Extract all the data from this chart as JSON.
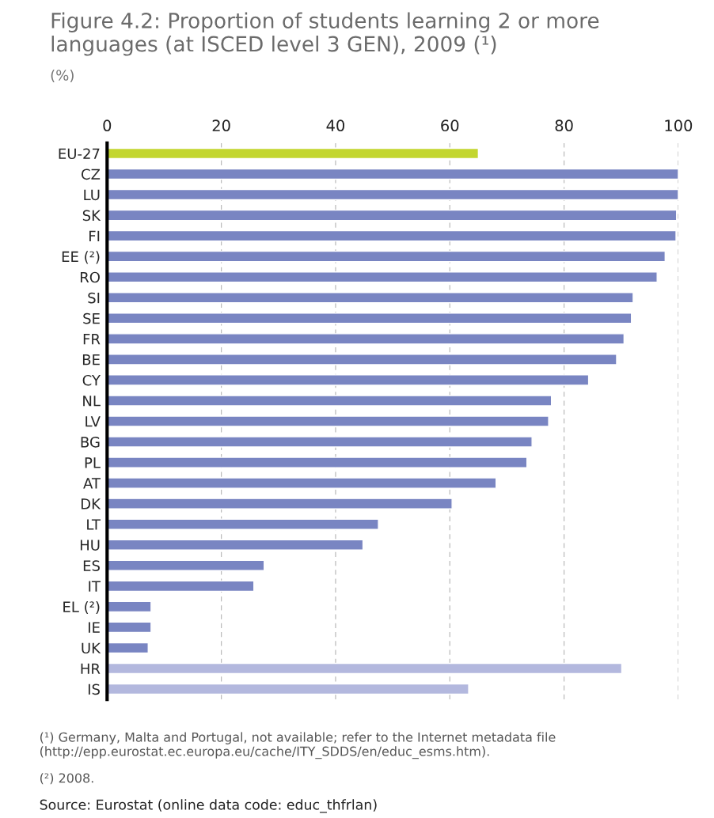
{
  "chart_data": {
    "type": "bar",
    "orientation": "horizontal",
    "title": "Figure 4.2: Proportion of students learning 2 or more languages (at ISCED level 3 GEN), 2009 (¹)",
    "subtitle": "(%)",
    "categories": [
      "EU-27",
      "CZ",
      "LU",
      "SK",
      "FI",
      "EE (²)",
      "RO",
      "SI",
      "SE",
      "FR",
      "BE",
      "CY",
      "NL",
      "LV",
      "BG",
      "PL",
      "AT",
      "DK",
      "LT",
      "HU",
      "ES",
      "IT",
      "EL (²)",
      "IE",
      "UK",
      "HR",
      "IS"
    ],
    "values": [
      65,
      100,
      100,
      99.7,
      99.6,
      97.7,
      96.3,
      92.1,
      91.8,
      90.5,
      89.2,
      84.3,
      77.8,
      77.3,
      74.4,
      73.5,
      68.1,
      60.4,
      47.5,
      44.8,
      27.5,
      25.7,
      7.7,
      7.7,
      7.2,
      90.1,
      63.3
    ],
    "colors": [
      "#c3d62f",
      "#7985c2",
      "#7985c2",
      "#7985c2",
      "#7985c2",
      "#7985c2",
      "#7985c2",
      "#7985c2",
      "#7985c2",
      "#7985c2",
      "#7985c2",
      "#7985c2",
      "#7985c2",
      "#7985c2",
      "#7985c2",
      "#7985c2",
      "#7985c2",
      "#7985c2",
      "#7985c2",
      "#7985c2",
      "#7985c2",
      "#7985c2",
      "#7985c2",
      "#7985c2",
      "#7985c2",
      "#b3b8de",
      "#b3b8de"
    ],
    "xlim": [
      0,
      100
    ],
    "xticks": [
      0,
      20,
      40,
      60,
      80,
      100
    ],
    "grid": "x",
    "annotations": [
      "(¹) Germany, Malta and Portugal, not available; refer to the Internet metadata file (http://epp.eurostat.ec.europa.eu/cache/ITY_SDDS/en/educ_esms.htm).",
      "(²) 2008.",
      "Source: Eurostat (online data code: educ_thfrlan)"
    ]
  }
}
